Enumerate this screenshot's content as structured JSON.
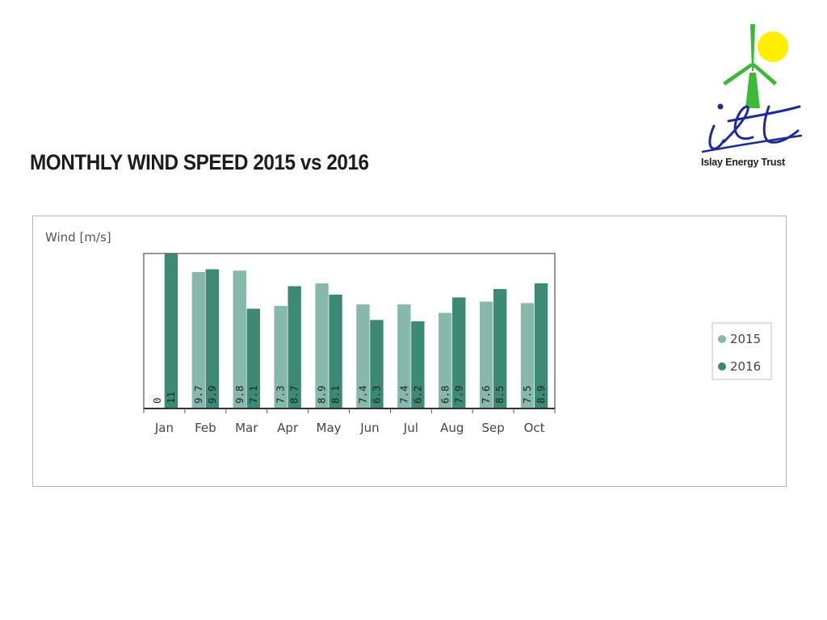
{
  "slide": {
    "title": "MONTHLY WIND SPEED 2015 vs 2016"
  },
  "logo": {
    "text": "Islay Energy Trust",
    "colors": {
      "sun": "#ffee00",
      "turbine": "#3db83a",
      "letters": "#1f2a9a"
    }
  },
  "chart_data": {
    "type": "bar",
    "ylabel": "Wind [m/s]",
    "xlabel": "",
    "categories": [
      "Jan",
      "Feb",
      "Mar",
      "Apr",
      "May",
      "Jun",
      "Jul",
      "Aug",
      "Sep",
      "Oct"
    ],
    "series": [
      {
        "name": "2015",
        "values": [
          0,
          9.7,
          9.8,
          7.3,
          8.9,
          7.4,
          7.4,
          6.8,
          7.6,
          7.5
        ],
        "color": "#86b9ab"
      },
      {
        "name": "2016",
        "values": [
          11,
          9.9,
          7.1,
          8.7,
          8.1,
          6.3,
          6.2,
          7.9,
          8.5,
          8.9
        ],
        "color": "#3c8a73"
      }
    ],
    "data_labels": true,
    "ylim": [
      0,
      11
    ],
    "grid": false,
    "legend_position": "right"
  }
}
